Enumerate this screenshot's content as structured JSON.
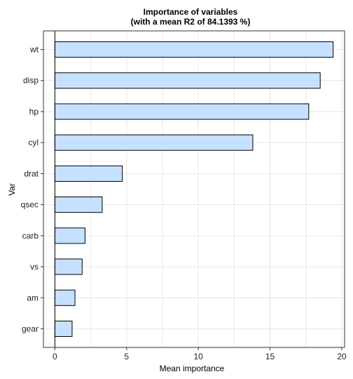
{
  "chart_data": {
    "type": "bar",
    "orientation": "horizontal",
    "title": "Importance of variables",
    "subtitle": "(with a mean R2 of 84.1393 %)",
    "xlabel": "Mean importance",
    "ylabel": "Var",
    "categories": [
      "wt",
      "disp",
      "hp",
      "cyl",
      "drat",
      "qsec",
      "carb",
      "vs",
      "am",
      "gear"
    ],
    "values": [
      19.4,
      18.5,
      17.7,
      13.8,
      4.7,
      3.3,
      2.1,
      1.9,
      1.4,
      1.2
    ],
    "xlim": [
      -0.8,
      20.2
    ],
    "xticks": [
      0,
      5,
      10,
      15,
      20
    ],
    "grid": true,
    "colors": {
      "bar_fill": "#c6e0ff",
      "bar_stroke": "#000000",
      "grid": "#e6e6e6",
      "panel_border": "#333333"
    }
  }
}
